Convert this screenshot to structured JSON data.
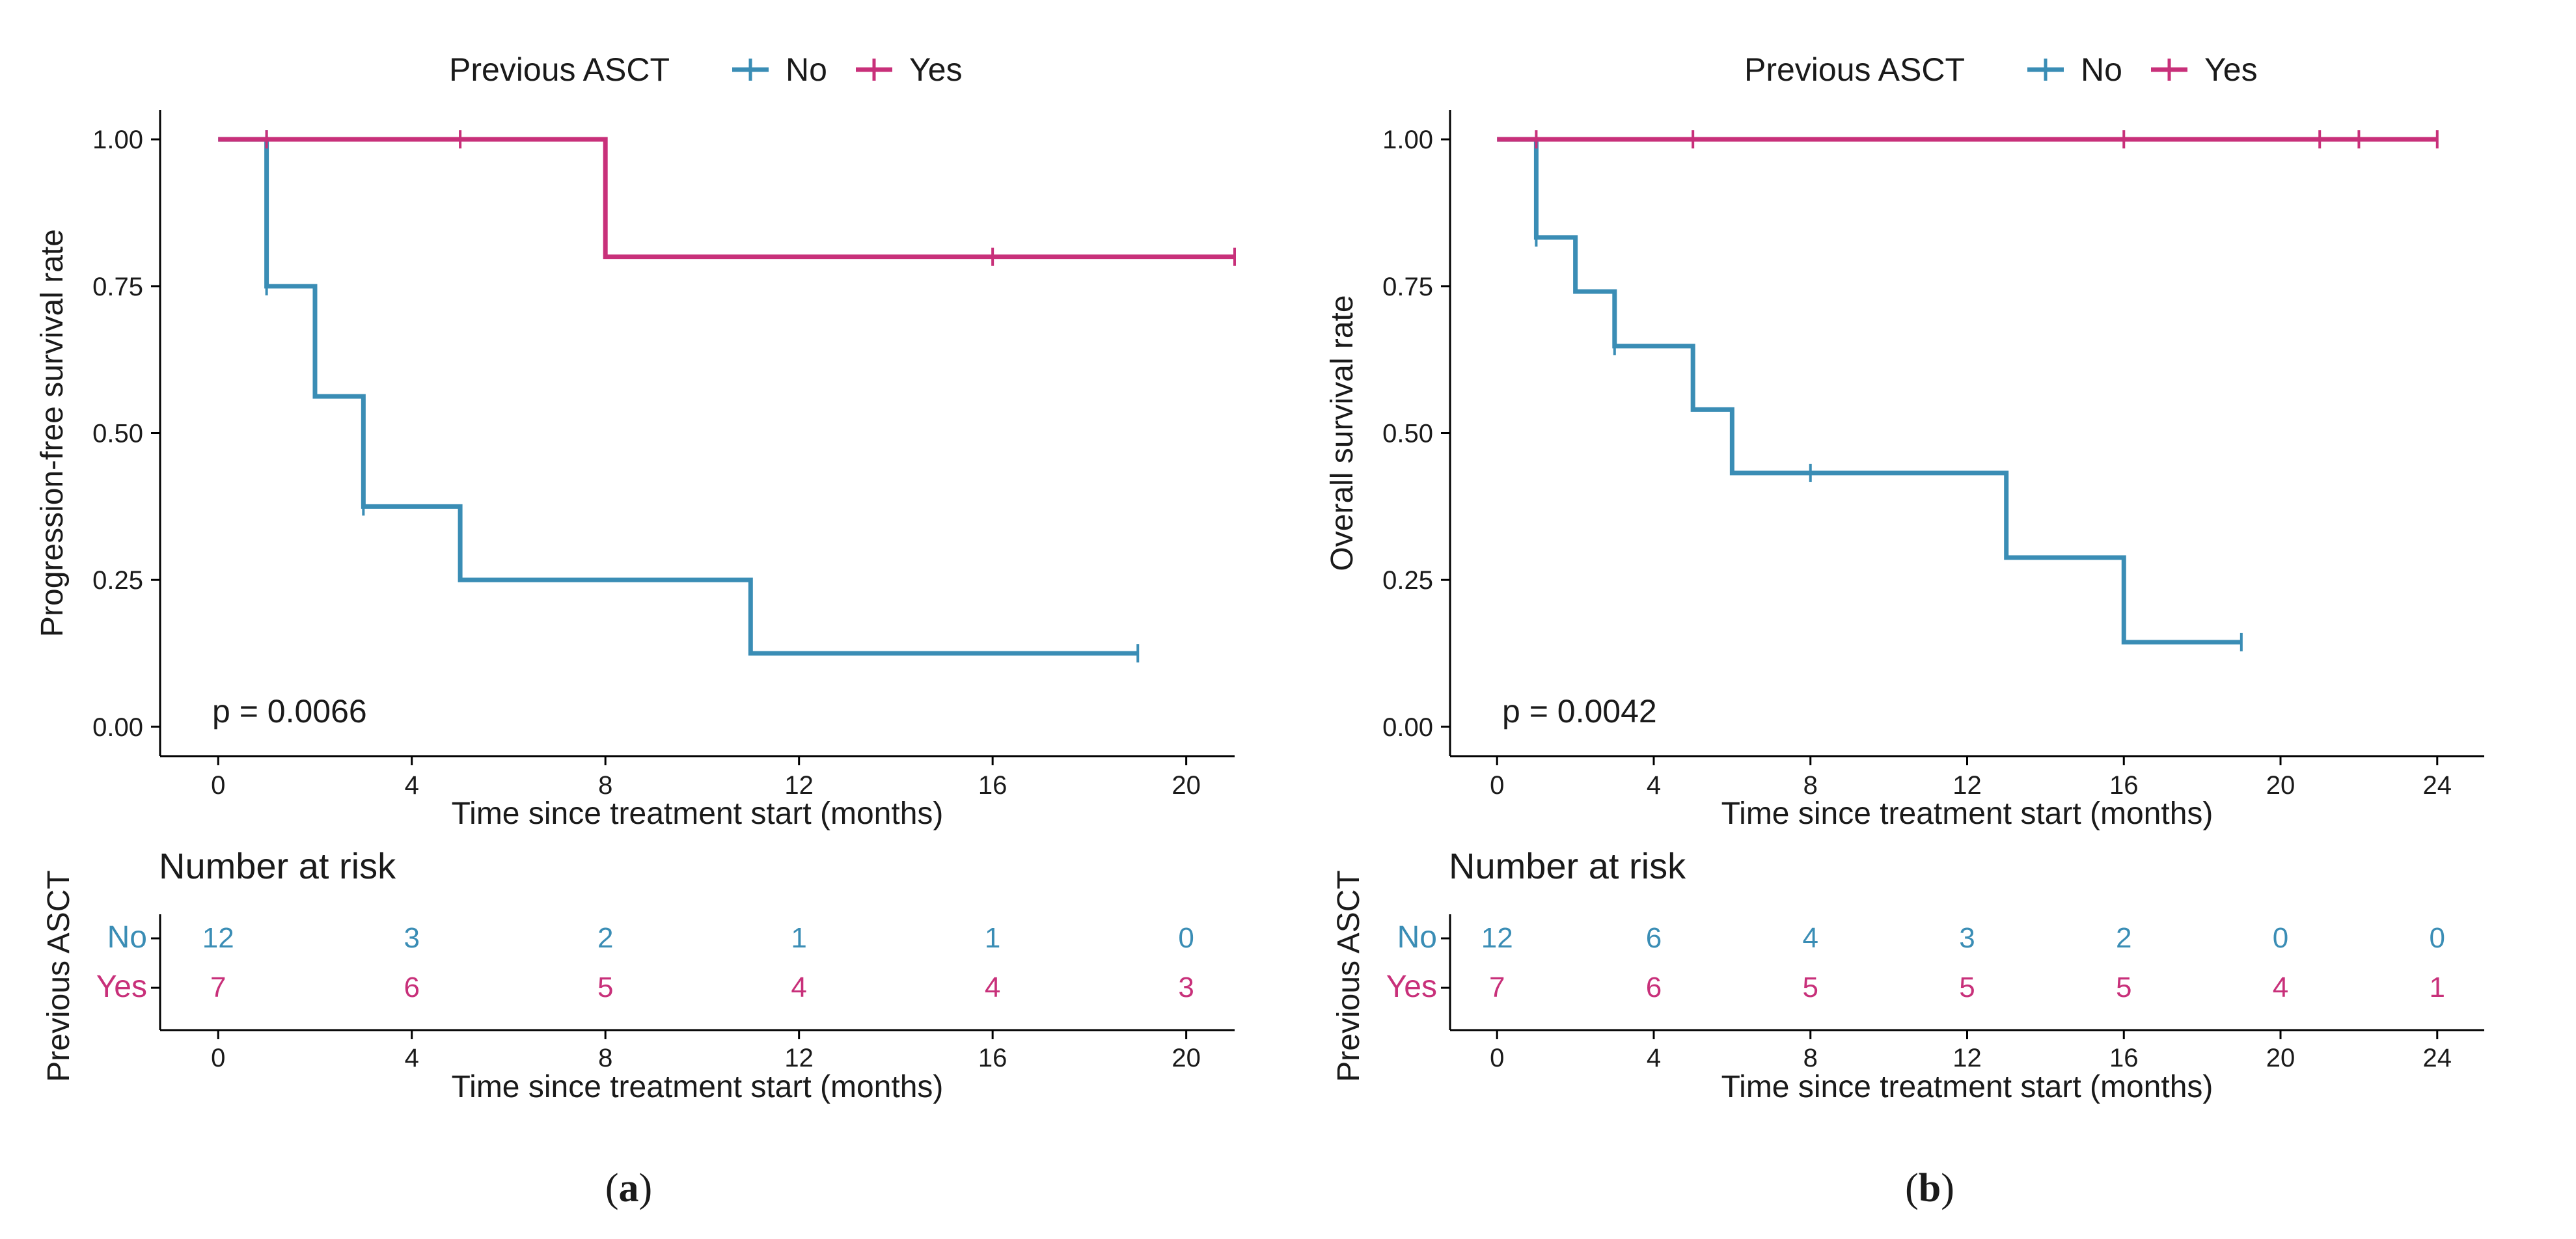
{
  "colors": {
    "no": "#3a8db5",
    "yes": "#c8307a",
    "axis": "#000000",
    "text": "#1a1a1a"
  },
  "chart_data": [
    {
      "panel": "(a)",
      "panel_letter": "a",
      "type": "line",
      "title": "",
      "legend": {
        "title": "Previous ASCT",
        "position": "top",
        "labels": [
          "No",
          "Yes"
        ]
      },
      "xlabel": "Time since treatment start (months)",
      "ylabel": "Progression-free survival rate",
      "xlim": [
        -1.2,
        21
      ],
      "ylim": [
        -0.05,
        1.05
      ],
      "xticks": [
        0,
        4,
        8,
        12,
        16,
        20
      ],
      "xtick_labels": [
        "0",
        "4",
        "8",
        "12",
        "16",
        "20"
      ],
      "yticks": [
        0,
        0.25,
        0.5,
        0.75,
        1
      ],
      "ytick_labels": [
        "0.00",
        "0.25",
        "0.50",
        "0.75",
        "1.00"
      ],
      "pvalue": "p = 0.0066",
      "series": [
        {
          "name": "No",
          "key": "no",
          "steps": [
            [
              0,
              1
            ],
            [
              1,
              0.75
            ],
            [
              2,
              0.5625
            ],
            [
              3,
              0.375
            ],
            [
              5,
              0.25
            ],
            [
              11,
              0.125
            ]
          ],
          "end": 19,
          "censors": [
            [
              1,
              1
            ],
            [
              1,
              0.75
            ],
            [
              3,
              0.375
            ],
            [
              19,
              0.125
            ]
          ]
        },
        {
          "name": "Yes",
          "key": "yes",
          "steps": [
            [
              0,
              1
            ],
            [
              8,
              0.8
            ]
          ],
          "end": 21,
          "censors": [
            [
              1,
              1
            ],
            [
              5,
              1
            ],
            [
              16,
              0.8
            ],
            [
              21,
              0.8
            ]
          ]
        }
      ],
      "risk_table": {
        "title": "Number at risk",
        "ylabel": "Previous ASCT",
        "xlabel": "Time since treatment start (months)",
        "times": [
          "0",
          "4",
          "8",
          "12",
          "16",
          "20"
        ],
        "rows": [
          {
            "label": "No",
            "key": "no",
            "values": [
              "12",
              "3",
              "2",
              "1",
              "1",
              "0"
            ]
          },
          {
            "label": "Yes",
            "key": "yes",
            "values": [
              "7",
              "6",
              "5",
              "4",
              "4",
              "3"
            ]
          }
        ]
      }
    },
    {
      "panel": "(b)",
      "panel_letter": "b",
      "type": "line",
      "title": "",
      "legend": {
        "title": "Previous ASCT",
        "position": "top",
        "labels": [
          "No",
          "Yes"
        ]
      },
      "xlabel": "Time since treatment start (months)",
      "ylabel": "Overall survival rate",
      "xlim": [
        -1.2,
        25.2
      ],
      "ylim": [
        -0.05,
        1.05
      ],
      "xticks": [
        0,
        4,
        8,
        12,
        16,
        20,
        24
      ],
      "xtick_labels": [
        "0",
        "4",
        "8",
        "12",
        "16",
        "20",
        "24"
      ],
      "yticks": [
        0,
        0.25,
        0.5,
        0.75,
        1
      ],
      "ytick_labels": [
        "0.00",
        "0.25",
        "0.50",
        "0.75",
        "1.00"
      ],
      "pvalue": "p = 0.0042",
      "series": [
        {
          "name": "No",
          "key": "no",
          "steps": [
            [
              0,
              1
            ],
            [
              1,
              0.833
            ],
            [
              2,
              0.741
            ],
            [
              3,
              0.648
            ],
            [
              5,
              0.54
            ],
            [
              6,
              0.432
            ],
            [
              13,
              0.288
            ],
            [
              16,
              0.144
            ]
          ],
          "end": 19,
          "censors": [
            [
              1,
              0.833
            ],
            [
              3,
              0.648
            ],
            [
              8,
              0.432
            ],
            [
              19,
              0.144
            ]
          ]
        },
        {
          "name": "Yes",
          "key": "yes",
          "steps": [
            [
              0,
              1
            ]
          ],
          "end": 24,
          "censors": [
            [
              1,
              1
            ],
            [
              5,
              1
            ],
            [
              16,
              1
            ],
            [
              21,
              1
            ],
            [
              22,
              1
            ],
            [
              24,
              1
            ]
          ]
        }
      ],
      "risk_table": {
        "title": "Number at risk",
        "ylabel": "Previous ASCT",
        "xlabel": "Time since treatment start (months)",
        "times": [
          "0",
          "4",
          "8",
          "12",
          "16",
          "20",
          "24"
        ],
        "rows": [
          {
            "label": "No",
            "key": "no",
            "values": [
              "12",
              "6",
              "4",
              "3",
              "2",
              "0",
              "0"
            ]
          },
          {
            "label": "Yes",
            "key": "yes",
            "values": [
              "7",
              "6",
              "5",
              "5",
              "5",
              "4",
              "1"
            ]
          }
        ]
      }
    }
  ]
}
